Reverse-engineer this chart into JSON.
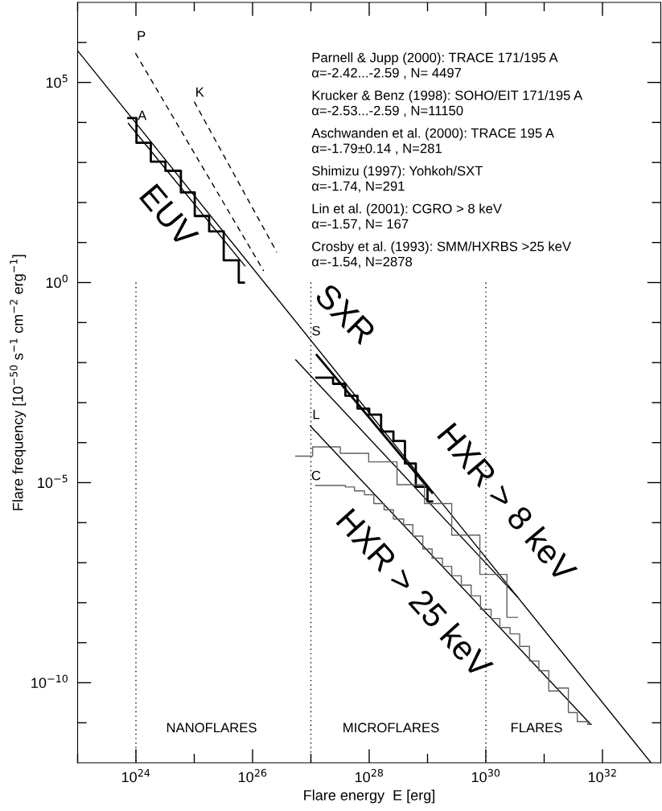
{
  "chart_data": {
    "type": "line",
    "xlabel": "Flare energy  E [erg]",
    "ylabel": "Flare frequency [10$^{−50}$ s$^{−1}$ cm$^{−2}$ erg$^{−1}$]",
    "log": "xy",
    "xlim": [
      1e+23,
      1e+33
    ],
    "ylim": [
      1e-12,
      10000000.0
    ],
    "xticks": [
      {
        "value": 1e+23,
        "label": null
      },
      {
        "value": 1e+24,
        "label": "10$^{24}$"
      },
      {
        "value": 1e+25,
        "label": null
      },
      {
        "value": 1e+26,
        "label": "10$^{26}$"
      },
      {
        "value": 1e+27,
        "label": null
      },
      {
        "value": 1e+28,
        "label": "10$^{28}$"
      },
      {
        "value": 1e+29,
        "label": null
      },
      {
        "value": 1e+30,
        "label": "10$^{30}$"
      },
      {
        "value": 1e+31,
        "label": null
      },
      {
        "value": 1e+32,
        "label": "10$^{32}$"
      }
    ],
    "yticks": [
      {
        "value": 1e-11,
        "label": null
      },
      {
        "value": 1e-10,
        "label": "10$^{−10}$"
      },
      {
        "value": 1e-09,
        "label": null
      },
      {
        "value": 1e-08,
        "label": null
      },
      {
        "value": 1e-07,
        "label": null
      },
      {
        "value": 1e-06,
        "label": null
      },
      {
        "value": 1e-05,
        "label": "10$^{−5}$"
      },
      {
        "value": 0.0001,
        "label": null
      },
      {
        "value": 0.001,
        "label": null
      },
      {
        "value": 0.01,
        "label": null
      },
      {
        "value": 0.1,
        "label": null
      },
      {
        "value": 1,
        "label": "10$^{0}$"
      },
      {
        "value": 10,
        "label": null
      },
      {
        "value": 100,
        "label": null
      },
      {
        "value": 1000,
        "label": null
      },
      {
        "value": 10000.0,
        "label": null
      },
      {
        "value": 100000.0,
        "label": "10$^{5}$"
      },
      {
        "value": 1000000.0,
        "label": null
      }
    ],
    "grid": false,
    "series": [
      {
        "type": "line",
        "color": "#000000",
        "x": [
          1e+23,
          6.8e+32
        ],
        "values": [
          620000.0,
          1e-12
        ]
      },
      {
        "type": "line",
        "color": "#000000",
        "line_style": "dashed",
        "x": [
          9.8e+23,
          1.55e+26
        ],
        "values": [
          540000.0,
          1.95
        ]
      },
      {
        "type": "line",
        "color": "#000000",
        "line_style": "dashed",
        "x": [
          1e+25,
          2.6e+26
        ],
        "values": [
          33000.0,
          5.75
        ]
      },
      {
        "type": "line",
        "color": "#000000",
        "x": [
          7.4e+23,
          7.4e+25
        ],
        "values": [
          9500.0,
          2.6
        ]
      },
      {
        "type": "step",
        "color": "#000000",
        "x": [
          7.4e+23,
          1.02e+24,
          1.8e+24,
          3.2e+24,
          5.9e+24,
          1.02e+25,
          1.8e+25,
          3.2e+25,
          5.8e+25,
          7.1e+25
        ],
        "values": [
          12900.0,
          3100.0,
          1050.0,
          620,
          178,
          46,
          19,
          3.6,
          1.0,
          1.0
        ]
      },
      {
        "type": "line",
        "color": "#000000",
        "x": [
          1.26e+27,
          1.2e+29
        ],
        "values": [
          0.0155,
          5.6e-06
        ]
      },
      {
        "type": "step",
        "color": "#000000",
        "x": [
          1.24e+27,
          2.4e+27,
          3.9e+27,
          6.3e+27,
          1e+28,
          1.6e+28,
          2.6e+28,
          4.1e+28,
          6.3e+28,
          1e+29,
          1.2e+29
        ],
        "values": [
          0.0042,
          0.00295,
          0.00148,
          0.00071,
          0.0005,
          0.00019,
          0.00011,
          3e-05,
          7.9e-06,
          3.4e-06,
          3.4e-06
        ]
      },
      {
        "type": "line",
        "color": "#000000",
        "x": [
          5.5e+26,
          3.5e+30
        ],
        "values": [
          0.0117,
          1.38e-08
        ]
      },
      {
        "type": "step",
        "color": "#606060",
        "x": [
          5.5e+26,
          1.07e+27,
          3.2e+27,
          9.8e+27,
          3e+28,
          8.9e+28,
          2.6e+29,
          7.9e+29,
          2.3e+30,
          3.5e+30
        ],
        "values": [
          4.6e-05,
          7.8e-05,
          5.4e-05,
          3.3e-05,
          8.9e-06,
          3e-06,
          4.9e-07,
          5.1e-08,
          4.3e-09,
          4.3e-09
        ]
      },
      {
        "type": "line",
        "color": "#000000",
        "x": [
          9.8e+26,
          6.3e+31
        ],
        "values": [
          0.00026,
          9.1e-12
        ]
      },
      {
        "type": "step",
        "color": "#606060",
        "x": [
          1.2e+27,
          3.9e+27,
          5.6e+27,
          8.3e+27,
          1.2e+28,
          1.8e+28,
          2.6e+28,
          3.9e+28,
          5.6e+28,
          8.3e+28,
          1.2e+29,
          1.8e+29,
          2.6e+29,
          3.8e+29,
          5.6e+29,
          8.1e+29,
          1.23e+30,
          1.74e+30,
          2.6e+30,
          3.8e+30,
          5.6e+30,
          8.1e+30,
          1.2e+31,
          1.74e+31,
          2.6e+31,
          3.7e+31,
          5.6e+31,
          6.5e+31
        ],
        "values": [
          8.5e-06,
          7.8e-06,
          6.2e-06,
          5e-06,
          3e-06,
          2.1e-06,
          1.23e-06,
          8.9e-07,
          4.6e-07,
          2.2e-07,
          1.29e-07,
          8.1e-08,
          4.7e-08,
          2.75e-08,
          1.48e-08,
          6.8e-09,
          4e-09,
          2.4e-09,
          1.66e-09,
          8.1e-10,
          3.5e-10,
          2e-10,
          6.2e-11,
          7.4e-11,
          1.8e-11,
          1.07e-11,
          9.1e-12,
          9.1e-12
        ]
      },
      {
        "type": "line",
        "color": "#000000",
        "line_style": "dotted",
        "x": [
          1e+24,
          1e+24
        ],
        "values": [
          1,
          1e-12
        ]
      },
      {
        "type": "line",
        "color": "#000000",
        "line_style": "dotted",
        "x": [
          1e+27,
          1e+27
        ],
        "values": [
          1,
          1e-12
        ]
      },
      {
        "type": "line",
        "color": "#000000",
        "line_style": "dotted",
        "x": [
          1e+30,
          1e+30
        ],
        "values": [
          1,
          1e-12
        ]
      }
    ],
    "annotations": [
      "Parnell & Jupp (2000): TRACE 171/195 A",
      "α=-2.42...-2.59 , N= 4497",
      "Krucker & Benz (1998): SOHO/EIT 171/195 A",
      "α=-2.53...-2.59 , N=11150",
      "Aschwanden et al. (2000): TRACE 195 A",
      "α=-1.79±0.14 , N=281",
      "Shimizu (1997): Yohkoh/SXT",
      "α=-1.74, N=291",
      "Lin et al. (2001): CGRO > 8 keV",
      "α=-1.57, N= 167",
      "Crosby et al. (1993): SMM/HXRBS >25 keV",
      "α=-1.54, N=2878",
      "P",
      "K",
      "A",
      "S",
      "L",
      "C",
      "EUV",
      "SXR",
      "HXR > 8 keV",
      "HXR > 25 keV",
      "NANOFLARES",
      "MICROFLARES",
      "FLARES"
    ]
  }
}
